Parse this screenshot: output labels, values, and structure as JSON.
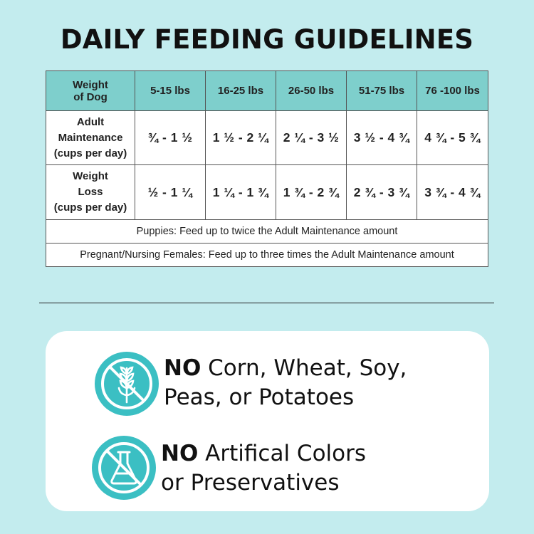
{
  "title": "DAILY FEEDING GUIDELINES",
  "table": {
    "corner_header": [
      "Weight",
      "of Dog"
    ],
    "columns": [
      "5-15 lbs",
      "16-25 lbs",
      "26-50 lbs",
      "51-75 lbs",
      "76 -100 lbs"
    ],
    "rows": [
      {
        "label": [
          "Adult",
          "Maintenance",
          "(cups per day)"
        ],
        "values": [
          "¾ - 1 ½",
          "1 ½ - 2 ¼",
          "2 ¼ - 3 ½",
          "3 ½ - 4 ¾",
          "4 ¾ - 5 ¾"
        ]
      },
      {
        "label": [
          "Weight",
          "Loss",
          "(cups per day)"
        ],
        "values": [
          "½ - 1 ¼",
          "1 ¼ - 1 ¾",
          "1 ¾ - 2 ¾",
          "2 ¾ - 3 ¾",
          "3 ¾ - 4 ¾"
        ]
      }
    ],
    "notes": [
      "Puppies: Feed up to twice the Adult Maintenance amount",
      "Pregnant/Nursing Females: Feed up to three times the Adult Maintenance amount"
    ],
    "header_color": "#7ecfcc"
  },
  "claims": [
    {
      "icon": "no-grain-icon",
      "strong": "NO",
      "line1": " Corn, Wheat, Soy,",
      "line2": "Peas, or Potatoes"
    },
    {
      "icon": "no-chemical-flask-icon",
      "strong": "NO",
      "line1": " Artifical Colors",
      "line2": "or Preservatives"
    }
  ],
  "colors": {
    "background": "#c3ecee",
    "accent": "#3bbfc3"
  }
}
